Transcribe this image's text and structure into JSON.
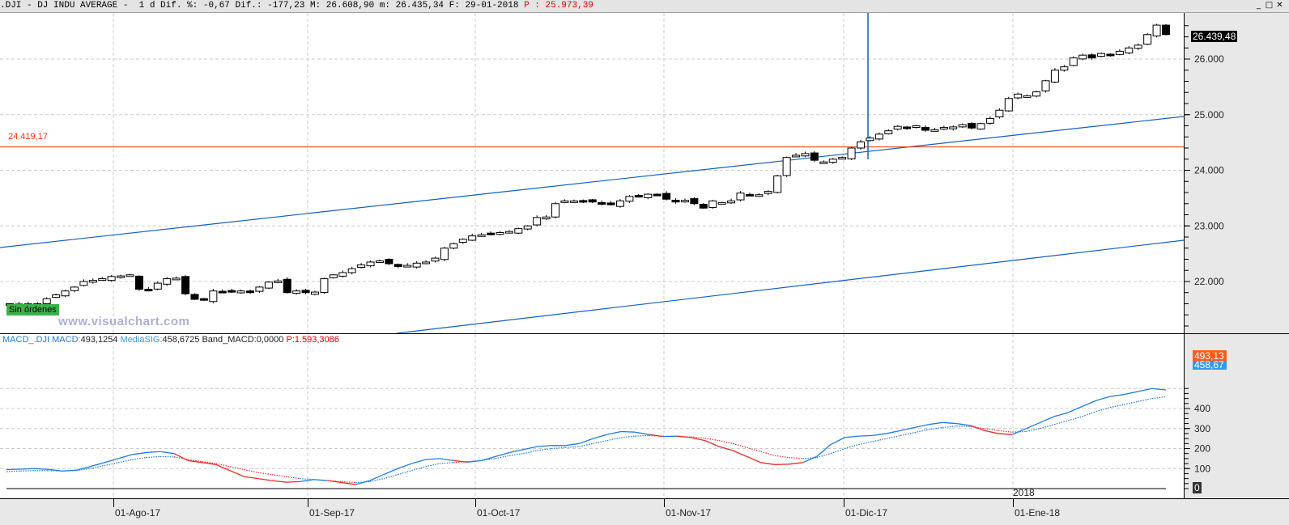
{
  "title_bar": {
    "symbol": ".DJI - DJ INDU AVERAGE -  1 d",
    "diff_pct_label": "Dif. %:",
    "diff_pct": "-0,67",
    "diff_label": "Dif.:",
    "diff": "-177,23",
    "max_label": "M:",
    "max": "26.608,90",
    "min_label": "m:",
    "min": "26.435,34",
    "date_label": "F:",
    "date": "29-01-2018",
    "price_label": "P :",
    "price": "25.973,39"
  },
  "window_buttons": {
    "minimize": "_",
    "maximize": "□",
    "close": "✕"
  },
  "price_pane": {
    "last_price_label": "26.439,48",
    "hline_label": "24.419,17",
    "order_badge": "Sin órdenes",
    "watermark": "www.visualchart.com"
  },
  "macd_pane": {
    "name": "MACD_.DJI",
    "macd_label": "MACD:",
    "macd_value": "493,1254",
    "signal_label": "MediaSIG:",
    "signal_value": "458,6725",
    "band_label": "Band_MACD:",
    "band_value": "0,0000",
    "p_label": "P:",
    "p_value": "1.593,3086",
    "last_macd_tag": "493,13",
    "last_signal_tag": "458,67",
    "zero_tag": "0",
    "year_marker": "2018"
  },
  "colors": {
    "macd_up": "#1e7be0",
    "macd_down": "#ee2a2a",
    "trendline": "#1060c0",
    "hline": "#ff3300",
    "tag_macd": "#ff5a1e",
    "tag_signal": "#3399ee"
  },
  "chart_data": [
    {
      "type": "candlestick",
      "title": ".DJI - DJ INDU AVERAGE - 1 d",
      "ylim": [
        21000,
        26700
      ],
      "yticks": [
        "22.000",
        "23.000",
        "24.000",
        "25.000",
        "26.000"
      ],
      "xticks": [
        "01-Ago-17",
        "01-Sep-17",
        "01-Oct-17",
        "01-Nov-17",
        "01-Dic-17",
        "01-Ene-18"
      ],
      "close": [
        21600,
        21580,
        21520,
        21600,
        21690,
        21760,
        21830,
        21900,
        22000,
        22020,
        22050,
        22090,
        22100,
        22120,
        21860,
        21840,
        21970,
        22050,
        22060,
        21780,
        21680,
        21670,
        21830,
        21820,
        21820,
        21830,
        21800,
        21900,
        21990,
        22010,
        21800,
        21830,
        21800,
        21810,
        22050,
        22120,
        22160,
        22230,
        22300,
        22350,
        22370,
        22320,
        22270,
        22290,
        22330,
        22350,
        22420,
        22600,
        22680,
        22760,
        22820,
        22840,
        22860,
        22880,
        22900,
        22950,
        23000,
        23150,
        23160,
        23400,
        23450,
        23450,
        23440,
        23430,
        23400,
        23380,
        23450,
        23530,
        23530,
        23570,
        23560,
        23480,
        23430,
        23460,
        23400,
        23320,
        23450,
        23420,
        23450,
        23590,
        23560,
        23560,
        23620,
        23900,
        24230,
        24270,
        24300,
        24180,
        24150,
        24200,
        24230,
        24400,
        24510,
        24580,
        24650,
        24710,
        24790,
        24760,
        24800,
        24720,
        24730,
        24770,
        24780,
        24820,
        24760,
        24840,
        24930,
        25080,
        25290,
        25370,
        25340,
        25410,
        25610,
        25800,
        25860,
        26020,
        26070,
        26020,
        26100,
        26070,
        26140,
        26200,
        26250,
        26440,
        26610,
        26440
      ],
      "annotations": {
        "hline": 24419.17,
        "last": 26439.48
      }
    },
    {
      "type": "line",
      "title": "MACD_.DJI",
      "ylim": [
        -20,
        530
      ],
      "yticks": [
        "0",
        "100",
        "200",
        "300",
        "400"
      ],
      "series": [
        {
          "name": "MACD",
          "values": [
            95,
            97,
            100,
            96,
            88,
            92,
            110,
            130,
            150,
            170,
            180,
            185,
            175,
            140,
            130,
            120,
            90,
            60,
            50,
            40,
            32,
            35,
            45,
            40,
            30,
            20,
            40,
            70,
            100,
            125,
            145,
            150,
            140,
            132,
            140,
            160,
            180,
            195,
            210,
            215,
            215,
            225,
            250,
            270,
            285,
            282,
            270,
            260,
            262,
            255,
            240,
            210,
            190,
            160,
            130,
            120,
            122,
            130,
            160,
            220,
            255,
            262,
            265,
            275,
            290,
            305,
            320,
            330,
            325,
            315,
            290,
            275,
            270,
            300,
            330,
            360,
            380,
            410,
            440,
            460,
            470,
            485,
            500,
            493
          ]
        },
        {
          "name": "MediaSIG",
          "values": [
            85,
            88,
            90,
            90,
            88,
            90,
            100,
            115,
            130,
            145,
            155,
            160,
            158,
            145,
            135,
            125,
            110,
            95,
            80,
            70,
            60,
            50,
            45,
            40,
            35,
            30,
            35,
            50,
            70,
            90,
            110,
            125,
            130,
            135,
            140,
            150,
            165,
            175,
            190,
            200,
            205,
            210,
            225,
            240,
            255,
            262,
            265,
            262,
            260,
            258,
            252,
            240,
            225,
            205,
            185,
            165,
            155,
            150,
            155,
            175,
            200,
            220,
            235,
            250,
            265,
            280,
            295,
            305,
            312,
            310,
            300,
            290,
            282,
            285,
            300,
            320,
            340,
            360,
            385,
            405,
            420,
            435,
            450,
            458.67
          ]
        }
      ]
    }
  ]
}
